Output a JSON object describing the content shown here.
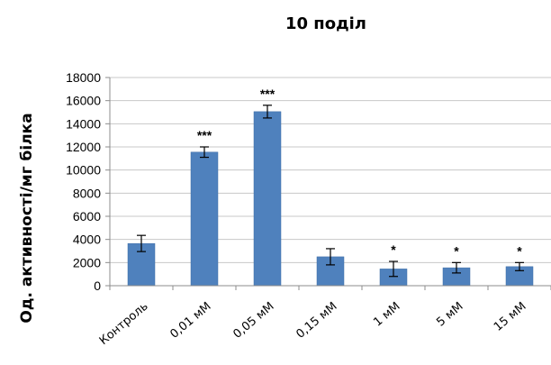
{
  "chart_data": {
    "type": "bar",
    "title": "10 поділ",
    "xlabel": "",
    "ylabel": "Од. активності/мг білка",
    "ylim": [
      0,
      18000
    ],
    "yticks": [
      0,
      2000,
      4000,
      6000,
      8000,
      10000,
      12000,
      14000,
      16000,
      18000
    ],
    "grid": true,
    "categories": [
      "Контроль",
      "0,01 мМ",
      "0,05 мМ",
      "0,15 мМ",
      "1 мМ",
      "5 мМ",
      "15 мМ"
    ],
    "values": [
      3650,
      11550,
      15050,
      2500,
      1450,
      1550,
      1650
    ],
    "errors": [
      700,
      450,
      550,
      700,
      650,
      450,
      350
    ],
    "annotations": [
      "",
      "***",
      "***",
      "",
      "*",
      "*",
      "*"
    ],
    "colors": {
      "bar": "#4f81bd",
      "grid": "#c8c8c8"
    }
  }
}
